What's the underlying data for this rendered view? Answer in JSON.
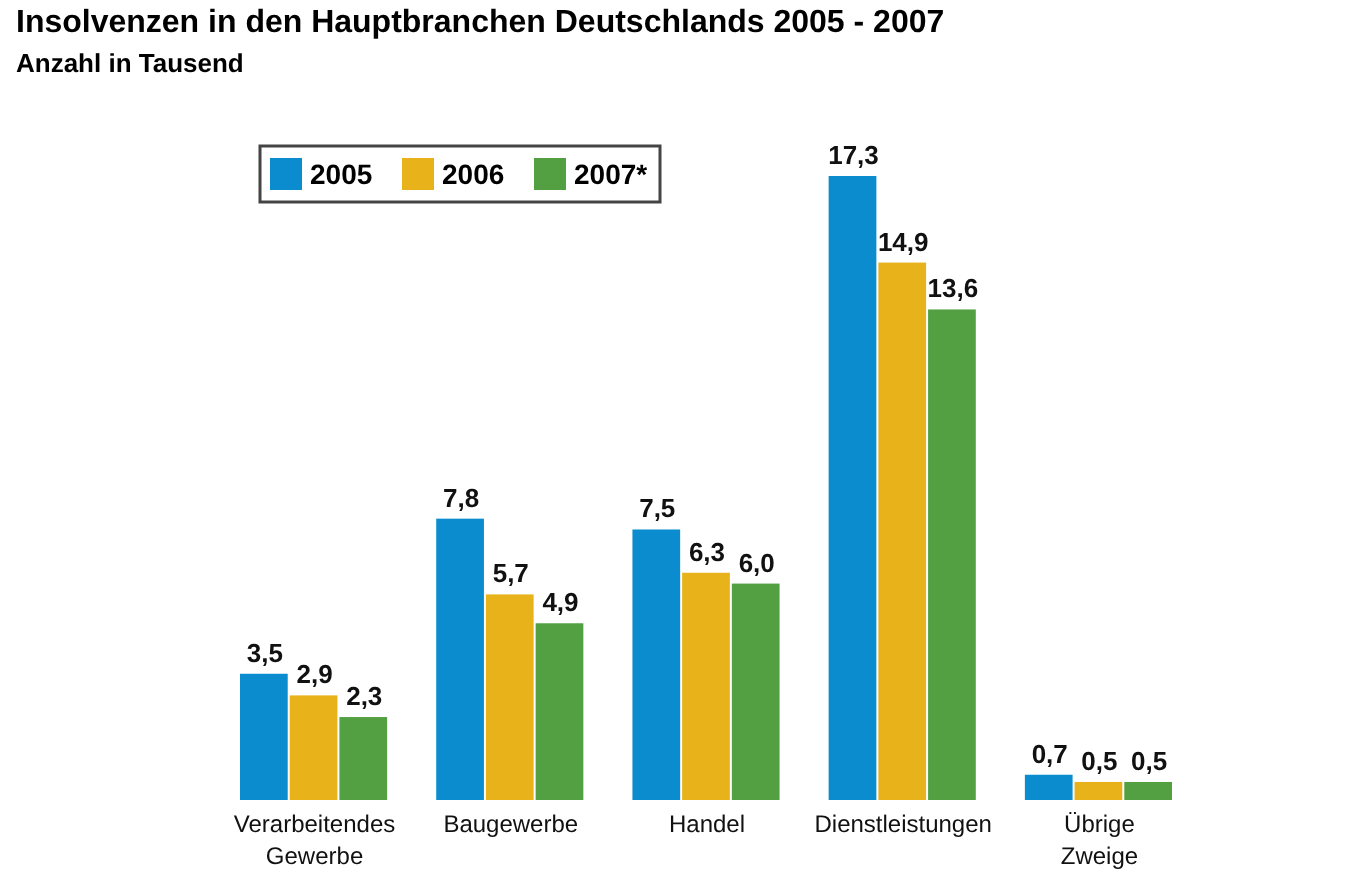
{
  "chart_data": {
    "type": "bar",
    "title": "Insolvenzen in den Hauptbranchen Deutschlands 2005 - 2007",
    "subtitle": "Anzahl in Tausend",
    "categories": [
      "Verarbeitendes Gewerbe",
      "Baugewerbe",
      "Handel",
      "Dienstleistungen",
      "Übrige Zweige"
    ],
    "series": [
      {
        "name": "2005",
        "color": "#0a8ccf",
        "values": [
          3.5,
          7.8,
          7.5,
          17.3,
          0.7
        ],
        "value_labels": [
          "3,5",
          "7,8",
          "7,5",
          "17,3",
          "0,7"
        ]
      },
      {
        "name": "2006",
        "color": "#e8b21a",
        "values": [
          2.9,
          5.7,
          6.3,
          14.9,
          0.5
        ],
        "value_labels": [
          "2,9",
          "5,7",
          "6,3",
          "14,9",
          "0,5"
        ]
      },
      {
        "name": "2007*",
        "color": "#52a042",
        "values": [
          2.3,
          4.9,
          6.0,
          13.6,
          0.5
        ],
        "value_labels": [
          "2,3",
          "4,9",
          "6,0",
          "13,6",
          "0,5"
        ]
      }
    ],
    "legend": "top left"
  }
}
